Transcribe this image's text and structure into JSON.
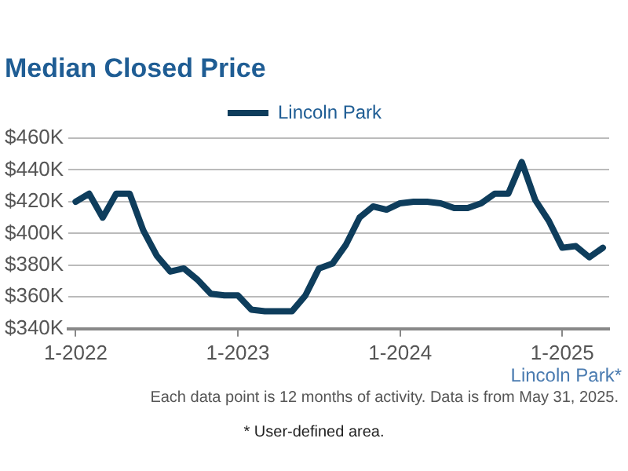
{
  "chart_data": {
    "type": "line",
    "title": "Median Closed Price",
    "x": [
      "2022-01",
      "2022-02",
      "2022-03",
      "2022-04",
      "2022-05",
      "2022-06",
      "2022-07",
      "2022-08",
      "2022-09",
      "2022-10",
      "2022-11",
      "2022-12",
      "2023-01",
      "2023-02",
      "2023-03",
      "2023-04",
      "2023-05",
      "2023-06",
      "2023-07",
      "2023-08",
      "2023-09",
      "2023-10",
      "2023-11",
      "2023-12",
      "2024-01",
      "2024-02",
      "2024-03",
      "2024-04",
      "2024-05",
      "2024-06",
      "2024-07",
      "2024-08",
      "2024-09",
      "2024-10",
      "2024-11",
      "2024-12",
      "2025-01",
      "2025-02",
      "2025-03",
      "2025-04"
    ],
    "series": [
      {
        "name": "Lincoln Park",
        "color": "#0e3d5c",
        "values": [
          420000,
          425000,
          410000,
          425000,
          425000,
          402000,
          386000,
          376000,
          378000,
          371000,
          362000,
          361000,
          361000,
          352000,
          351000,
          351000,
          351000,
          361000,
          378000,
          381000,
          393000,
          410000,
          417000,
          415000,
          419000,
          420000,
          420000,
          419000,
          416000,
          416000,
          419000,
          425000,
          425000,
          445000,
          421000,
          408000,
          391000,
          392000,
          385000,
          391000
        ]
      }
    ],
    "xlim": [
      "2021-12-15",
      "2025-04-15"
    ],
    "xticks": [
      {
        "value": "2022-01",
        "label": "1-2022"
      },
      {
        "value": "2023-01",
        "label": "1-2023"
      },
      {
        "value": "2024-01",
        "label": "1-2024"
      },
      {
        "value": "2025-01",
        "label": "1-2025"
      }
    ],
    "ylim": [
      340000,
      460000
    ],
    "yticks": [
      {
        "value": 340000,
        "label": "$340K"
      },
      {
        "value": 360000,
        "label": "$360K"
      },
      {
        "value": 380000,
        "label": "$380K"
      },
      {
        "value": 400000,
        "label": "$400K"
      },
      {
        "value": 420000,
        "label": "$420K"
      },
      {
        "value": 440000,
        "label": "$440K"
      },
      {
        "value": 460000,
        "label": "$460K"
      }
    ],
    "grid": "y",
    "legend": "top",
    "marker": "none",
    "line_style": "solid",
    "annotations": [
      "Lincoln Park*",
      "Each data point is 12 months of activity. Data is from May 31, 2025.",
      "* User-defined area."
    ]
  }
}
